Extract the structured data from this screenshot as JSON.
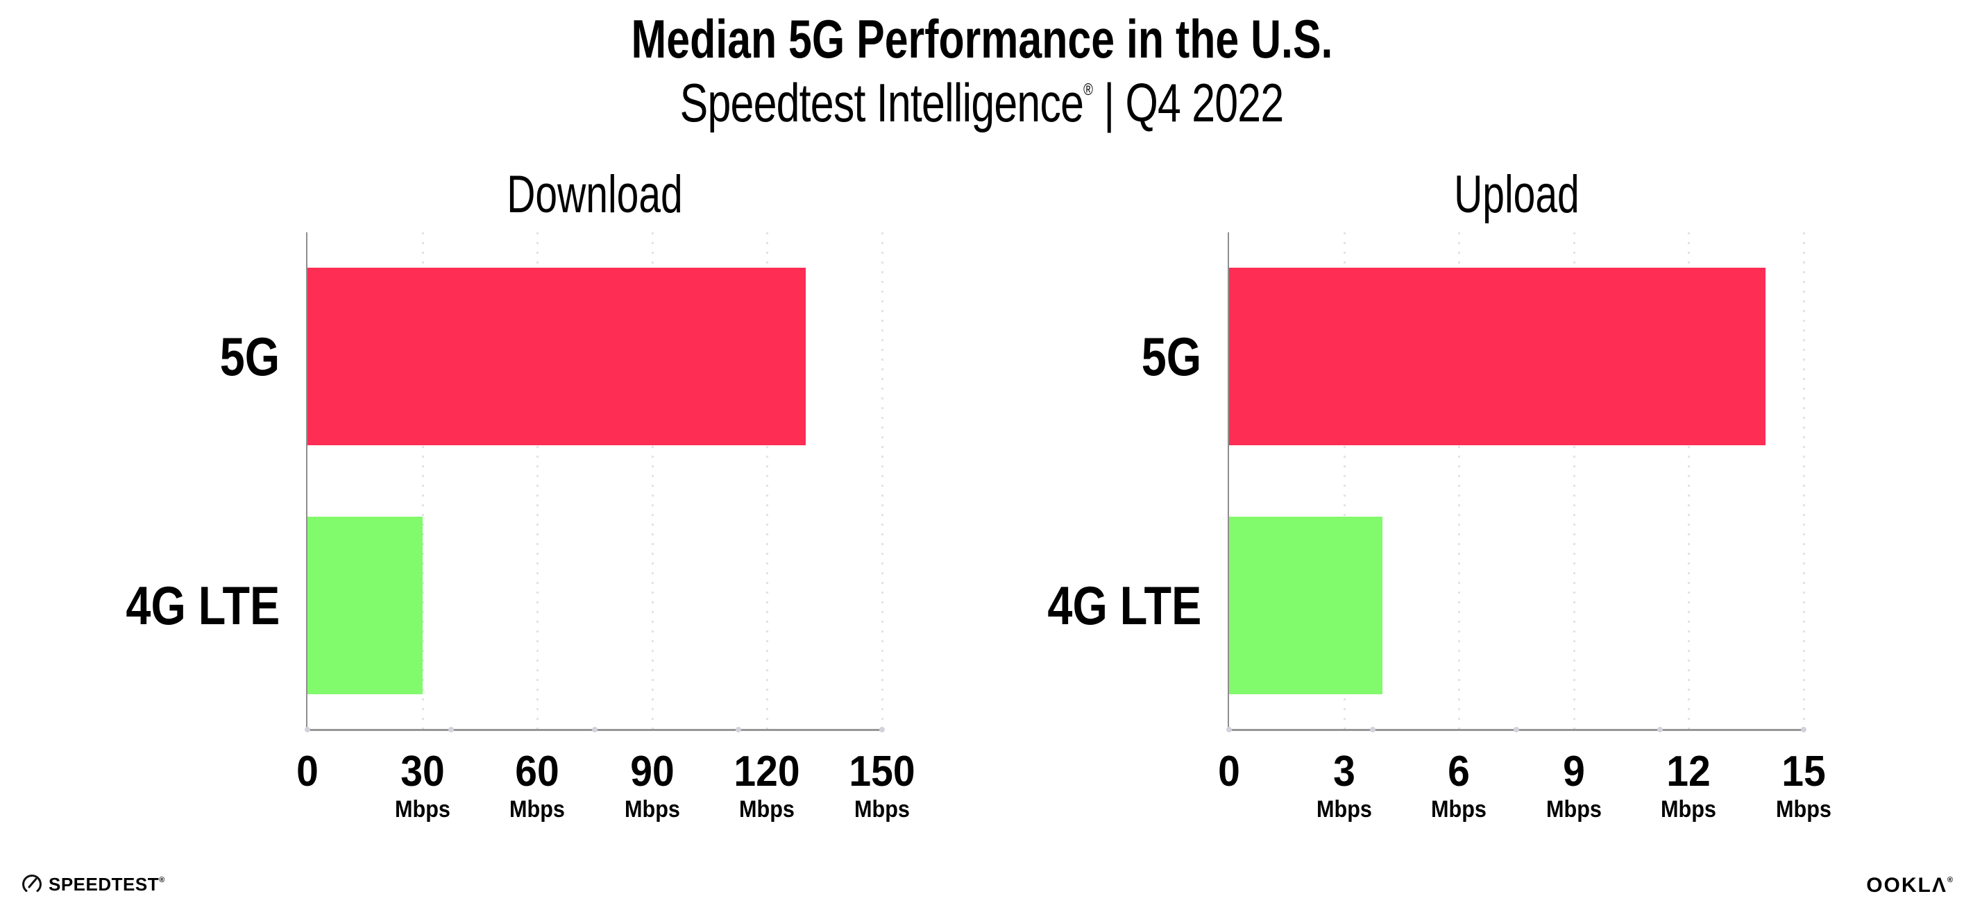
{
  "header": {
    "title": "Median 5G Performance in the U.S.",
    "subtitle_brand": "Speedtest Intelligence",
    "subtitle_reg": "®",
    "subtitle_rest": " | Q4 2022"
  },
  "chart_data": [
    {
      "type": "bar",
      "orientation": "horizontal",
      "title": "Download",
      "categories": [
        "5G",
        "4G LTE"
      ],
      "values": [
        130,
        30
      ],
      "unit": "Mbps",
      "xlim": [
        0,
        150
      ],
      "xticks": [
        0,
        30,
        60,
        90,
        120,
        150
      ],
      "xtick_unit": "Mbps",
      "grid": "dotted-vertical",
      "legend": "none",
      "bar_colors": [
        "#fd2d54",
        "#81fa6b"
      ]
    },
    {
      "type": "bar",
      "orientation": "horizontal",
      "title": "Upload",
      "categories": [
        "5G",
        "4G LTE"
      ],
      "values": [
        14,
        4
      ],
      "unit": "Mbps",
      "xlim": [
        0,
        15
      ],
      "xticks": [
        0,
        3,
        6,
        9,
        12,
        15
      ],
      "xtick_unit": "Mbps",
      "grid": "dotted-vertical",
      "legend": "none",
      "bar_colors": [
        "#fd2d54",
        "#81fa6b"
      ]
    }
  ],
  "colors": {
    "bar_5g": "#fd2d54",
    "bar_4g_lte": "#81fa6b",
    "axis": "#8e8e8e",
    "gridline": "#e2e2ed",
    "text": "#000000",
    "background": "#ffffff"
  },
  "footer": {
    "speedtest_label": "SPEEDTEST",
    "speedtest_mark": "®",
    "ookla_label": "OOKLΛ",
    "ookla_mark": "®"
  }
}
